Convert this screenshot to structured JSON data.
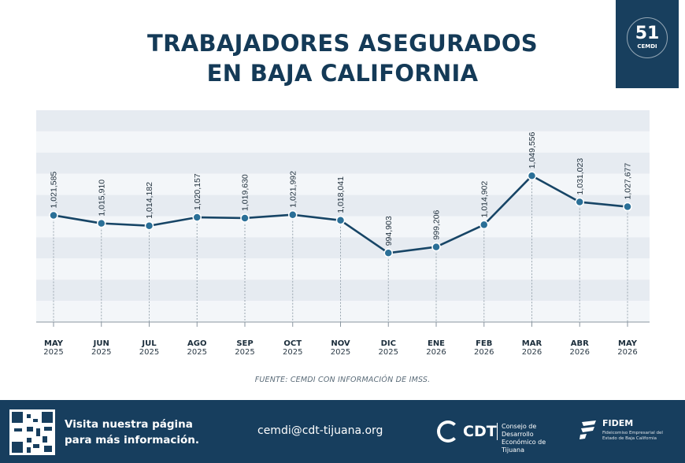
{
  "header": {
    "title_line1": "TRABAJADORES ASEGURADOS",
    "title_line2": "EN BAJA CALIFORNIA",
    "badge_logo_number": "51",
    "badge_logo_text": "CEMDI"
  },
  "chart_data": {
    "type": "line",
    "categories": [
      "MAY",
      "JUN",
      "JUL",
      "AGO",
      "SEP",
      "OCT",
      "NOV",
      "DIC",
      "ENE",
      "FEB",
      "MAR",
      "ABR",
      "MAY"
    ],
    "years": [
      "2025",
      "2025",
      "2025",
      "2025",
      "2025",
      "2025",
      "2025",
      "2025",
      "2026",
      "2026",
      "2026",
      "2026",
      "2026"
    ],
    "values": [
      1021585,
      1015910,
      1014182,
      1020157,
      1019630,
      1021992,
      1018041,
      994903,
      999206,
      1014902,
      1049556,
      1031023,
      1027677
    ],
    "value_labels": [
      "1,021,585",
      "1,015,910",
      "1,014,182",
      "1,020,157",
      "1,019,630",
      "1,021,992",
      "1,018,041",
      "994,903",
      "999,206",
      "1,014,902",
      "1,049,556",
      "1,031,023",
      "1,027,677"
    ],
    "title": "TRABAJADORES ASEGURADOS EN BAJA CALIFORNIA",
    "xlabel": "",
    "ylabel": "",
    "ylim": [
      946000,
      1096000
    ],
    "grid": "horizontal bands",
    "line_color": "#174566",
    "point_color": "#2a6f97"
  },
  "source": "FUENTE: CEMDI CON INFORMACIÓN DE IMSS.",
  "footer": {
    "visit_line1": "Visita nuestra página",
    "visit_line2": "para más información.",
    "email": "cemdi@cdt-tijuana.org",
    "cdt_name": "CDT",
    "cdt_desc": "Consejo de Desarrollo Económico de Tijuana",
    "fidem_name": "FIDEM",
    "fidem_desc": "Fideicomiso Empresarial del Estado de Baja California"
  },
  "colors": {
    "navy": "#173e5e",
    "title": "#143a57",
    "band_light": "#f3f6f9",
    "band_dark": "#e6ebf1"
  }
}
